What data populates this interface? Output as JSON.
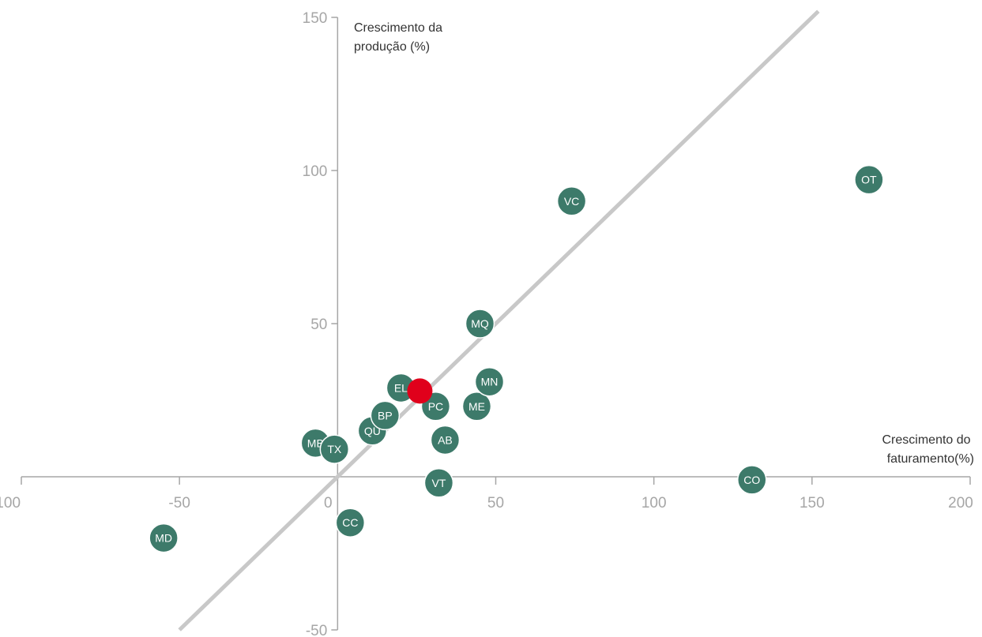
{
  "chart_data": {
    "type": "scatter",
    "title": "",
    "xlabel_lines": [
      "Crescimento do",
      "faturamento(%)"
    ],
    "ylabel_lines": [
      "Crescimento da",
      "produção (%)"
    ],
    "xlim": [
      -100,
      200
    ],
    "ylim": [
      -50,
      150
    ],
    "x_ticks": [
      -100,
      -50,
      0,
      50,
      100,
      150,
      200
    ],
    "y_ticks": [
      -50,
      50,
      100,
      150
    ],
    "grid": false,
    "colors": {
      "points": "#3d7a6a",
      "highlight": "#e0001b",
      "axes": "#a6a6a6",
      "reference_line": "#c8c8c8"
    },
    "reference_line": {
      "x1": -50,
      "y1": -50,
      "x2": 152,
      "y2": 152
    },
    "points": [
      {
        "label": "MD",
        "x": -55,
        "y": -20
      },
      {
        "label": "CC",
        "x": 4,
        "y": -15
      },
      {
        "label": "VT",
        "x": 32,
        "y": -2
      },
      {
        "label": "MB",
        "x": -7,
        "y": 11
      },
      {
        "label": "TX",
        "x": -1,
        "y": 9
      },
      {
        "label": "QU",
        "x": 11,
        "y": 15
      },
      {
        "label": "BP",
        "x": 15,
        "y": 20
      },
      {
        "label": "AB",
        "x": 34,
        "y": 12
      },
      {
        "label": "EL",
        "x": 20,
        "y": 29
      },
      {
        "label": "PC",
        "x": 31,
        "y": 23
      },
      {
        "label": "ME",
        "x": 44,
        "y": 23
      },
      {
        "label": "MN",
        "x": 48,
        "y": 31
      },
      {
        "label": "MQ",
        "x": 45,
        "y": 50
      },
      {
        "label": "VC",
        "x": 74,
        "y": 90
      },
      {
        "label": "OT",
        "x": 168,
        "y": 97
      },
      {
        "label": "CO",
        "x": 131,
        "y": -1
      }
    ],
    "highlight_point": {
      "x": 26,
      "y": 28
    }
  }
}
